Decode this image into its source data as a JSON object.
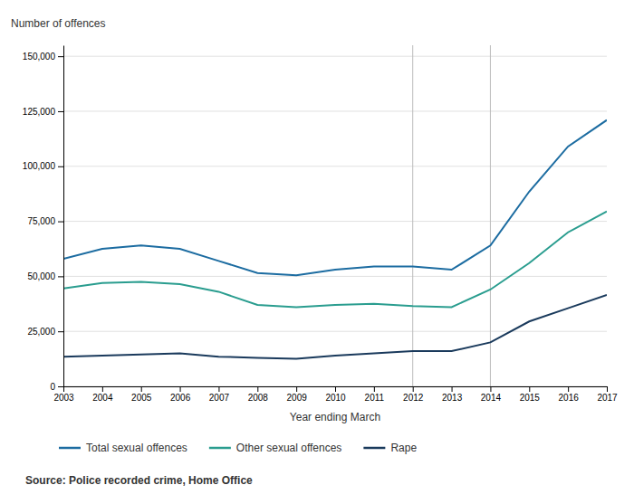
{
  "chart_data": {
    "type": "line",
    "xlabel": "Year ending March",
    "ylabel": "Number of offences",
    "source": "Source: Police recorded crime, Home Office",
    "x": [
      2003,
      2004,
      2005,
      2006,
      2007,
      2008,
      2009,
      2010,
      2011,
      2012,
      2013,
      2014,
      2015,
      2016,
      2017
    ],
    "xlim": [
      2003,
      2017
    ],
    "xticks": [
      2003,
      2004,
      2005,
      2006,
      2007,
      2008,
      2009,
      2010,
      2011,
      2012,
      2013,
      2014,
      2015,
      2016,
      2017
    ],
    "ylim": [
      0,
      155000
    ],
    "yticks": [
      0,
      {
        "value": 25000,
        "label": "25,000"
      },
      {
        "value": 50000,
        "label": "50,000"
      },
      {
        "value": 75000,
        "label": "75,000"
      },
      {
        "value": 100000,
        "label": "100,000"
      },
      {
        "value": 125000,
        "label": "125,000"
      },
      {
        "value": 150000,
        "label": "150,000"
      }
    ],
    "grid": true,
    "legend": "bottom",
    "vlines": [
      2012,
      2014
    ],
    "series": [
      {
        "name": "Total sexual offences",
        "color": "#1c6ca1",
        "values": [
          58000,
          62500,
          64000,
          62500,
          57000,
          51500,
          50500,
          53000,
          54500,
          54500,
          53000,
          64000,
          88500,
          109000,
          121000
        ]
      },
      {
        "name": "Other sexual offences",
        "color": "#2a9d8f",
        "values": [
          44500,
          47000,
          47500,
          46500,
          43000,
          37000,
          36000,
          37000,
          37500,
          36500,
          36000,
          44000,
          56000,
          70000,
          79500
        ]
      },
      {
        "name": "Rape",
        "color": "#1a3a5c",
        "values": [
          13500,
          14000,
          14500,
          15000,
          13500,
          13000,
          12500,
          14000,
          15000,
          16000,
          16000,
          20000,
          29500,
          35500,
          41500
        ]
      }
    ]
  }
}
